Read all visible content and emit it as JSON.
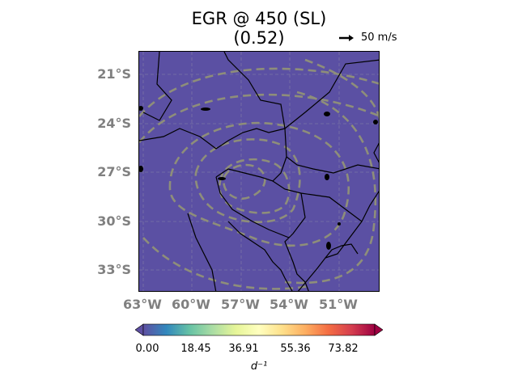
{
  "title": {
    "line1": "EGR @ 450 (SL)",
    "line2": "(0.52)"
  },
  "reference_vector": {
    "label": "50 m/s",
    "icon": "arrow-right-icon"
  },
  "map": {
    "background_color": "#5b50a3",
    "contour_color": "#8e8e7a",
    "lat_labels": [
      "21°S",
      "24°S",
      "27°S",
      "30°S",
      "33°S"
    ],
    "lon_labels": [
      "63°W",
      "60°W",
      "57°W",
      "54°W",
      "51°W"
    ],
    "gridlines": true
  },
  "colorbar": {
    "colormap": "Spectral_r",
    "ticks": [
      "0.00",
      "18.45",
      "36.91",
      "55.36",
      "73.82"
    ],
    "label": "d⁻¹",
    "extend": "both"
  }
}
